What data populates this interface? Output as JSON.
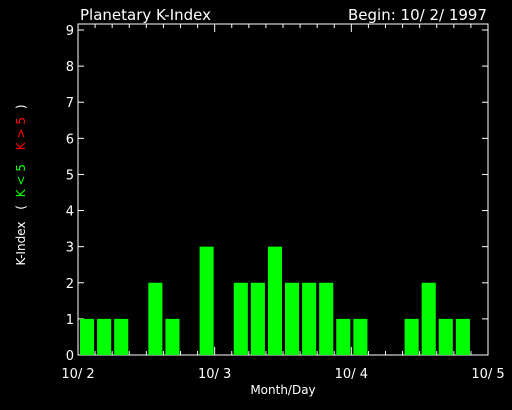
{
  "header": {
    "title": "Planetary K-Index",
    "begin_label": "Begin: 10/ 2/ 1997"
  },
  "colors": {
    "background": "#000000",
    "axis": "#ffffff",
    "text": "#ffffff",
    "bar": "#00ff00",
    "legend_low": "#00ff00",
    "legend_high": "#ff0000"
  },
  "chart_data": {
    "type": "bar",
    "title": "Planetary K-Index",
    "subtitle": "Begin: 10/ 2/ 1997",
    "xlabel": "Month/Day",
    "ylabel": {
      "prefix": "K-Index",
      "open_paren": "(",
      "low_label": "K < 5",
      "high_label": "K > 5",
      "close_paren": ")"
    },
    "ylim": [
      0,
      9
    ],
    "yticks": [
      "0",
      "1",
      "2",
      "3",
      "4",
      "5",
      "6",
      "7",
      "8",
      "9"
    ],
    "xlim": [
      0,
      24
    ],
    "xtick_labels": [
      "10/ 2",
      "10/ 3",
      "10/ 4",
      "10/ 5"
    ],
    "xtick_values": [
      0,
      8,
      16,
      24
    ],
    "interval_hours": 3,
    "values": [
      1,
      1,
      1,
      0,
      2,
      1,
      0,
      3,
      0,
      2,
      2,
      3,
      2,
      2,
      2,
      1,
      1,
      0,
      0,
      1,
      2,
      1,
      1,
      0
    ],
    "grid": false
  }
}
